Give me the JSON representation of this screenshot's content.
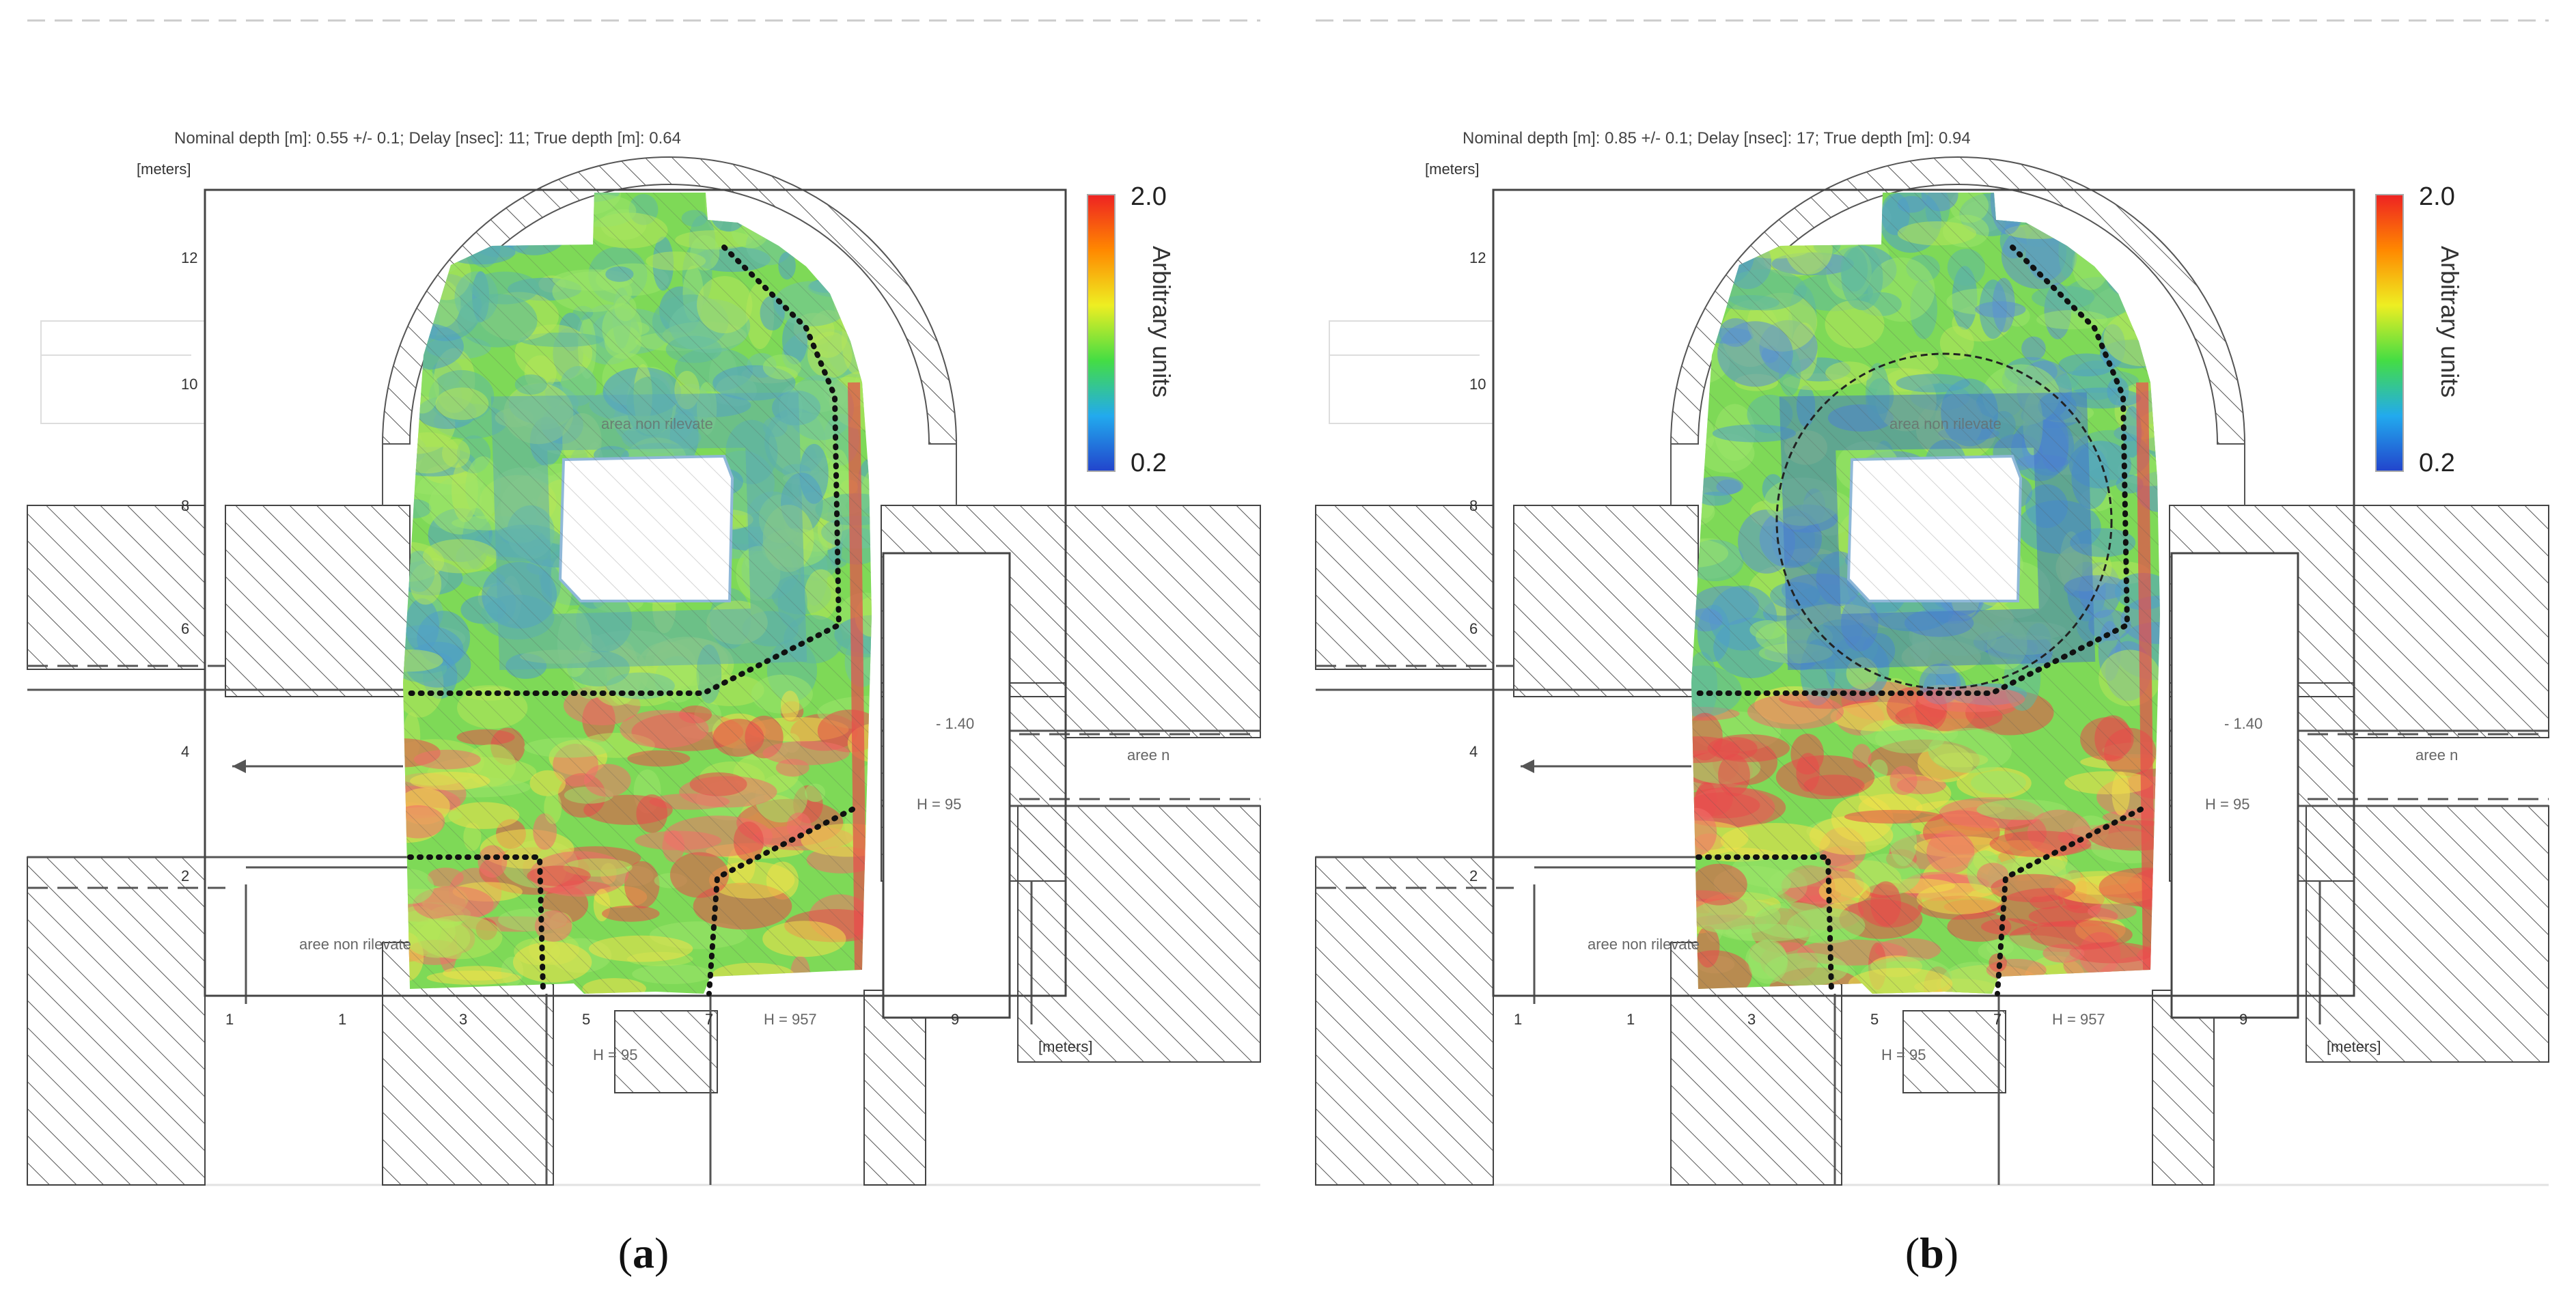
{
  "panels": [
    {
      "id": "a",
      "header": "Nominal depth [m]: 0.55 +/- 0.1;   Delay [nsec]: 11;   True depth [m]: 0.64",
      "caption_label": "a",
      "anomaly_circle": false
    },
    {
      "id": "b",
      "header": "Nominal depth [m]: 0.85 +/- 0.1;   Delay [nsec]: 17;   True depth [m]: 0.94",
      "caption_label": "b",
      "anomaly_circle": true
    }
  ],
  "axes": {
    "y_unit": "[meters]",
    "x_unit": "[meters]",
    "y_ticks": [
      "12",
      "10",
      "8",
      "6",
      "4",
      "2"
    ],
    "x_ticks": [
      "1",
      "1",
      "3",
      "5",
      "7",
      "9"
    ]
  },
  "colorbar": {
    "max": "2.0",
    "min": "0.2",
    "title": "Arbitrary units",
    "colors": [
      "#2244cc",
      "#22aaee",
      "#44dd44",
      "#eeee22",
      "#ff8800",
      "#ee2222"
    ]
  },
  "plan_labels": {
    "elevation": "- 1.40",
    "h_right": "H = 95",
    "h_bottom_mid": "H = 95",
    "h_bottom_right": "H = 957",
    "area_left": "aree non rilevate",
    "area_center": "area non rilevate",
    "area_right": "aree n"
  }
}
